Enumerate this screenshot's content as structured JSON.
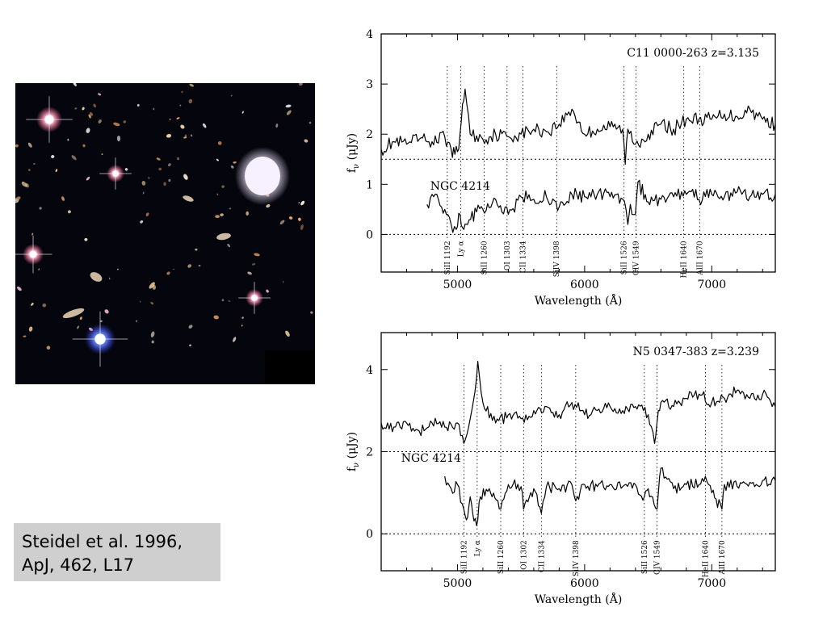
{
  "citation": {
    "line1": "Steidel et al. 1996,",
    "line2": "ApJ, 462, L17"
  },
  "image": {
    "description": ""
  },
  "chart_data": [
    {
      "type": "line",
      "title": "C11 0000-263 z=3.135",
      "xlabel": "Wavelength (Å)",
      "ylabel": "f_ν (μJy)",
      "xlim": [
        4400,
        7500
      ],
      "ylim": [
        -0.75,
        4
      ],
      "x_ticks": [
        5000,
        6000,
        7000
      ],
      "y_ticks": [
        4,
        3,
        2,
        1,
        0
      ],
      "zero_lines": [
        1.5,
        0
      ],
      "reference_label": "NGC 4214",
      "line_markers": [
        {
          "label": "SiII 1192",
          "x": 4920
        },
        {
          "label": "Ly α",
          "x": 5025
        },
        {
          "label": "SiII 1260",
          "x": 5210
        },
        {
          "label": "OI 1303",
          "x": 5390
        },
        {
          "label": "CII 1334",
          "x": 5515
        },
        {
          "label": "SiIV 1398",
          "x": 5780
        },
        {
          "label": "SiII 1526",
          "x": 6310
        },
        {
          "label": "CIV 1549",
          "x": 6405
        },
        {
          "label": "HeII 1640",
          "x": 6780
        },
        {
          "label": "AlII 1670",
          "x": 6905
        }
      ],
      "series": [
        {
          "x": [
            4400,
            4500,
            4600,
            4700,
            4800,
            4900,
            4950,
            4980,
            5010,
            5040,
            5060,
            5100,
            5200,
            5300,
            5400,
            5500,
            5600,
            5700,
            5800,
            5900,
            6000,
            6100,
            6200,
            6300,
            6320,
            6340,
            6400,
            6500,
            6600,
            6700,
            6800,
            6900,
            7000,
            7100,
            7200,
            7300,
            7400,
            7500
          ],
          "y": [
            1.7,
            1.85,
            1.8,
            1.9,
            1.85,
            1.95,
            1.7,
            1.6,
            1.7,
            2.6,
            2.9,
            2.0,
            1.9,
            2.0,
            1.95,
            2.0,
            2.1,
            2.05,
            2.2,
            2.5,
            2.0,
            2.1,
            2.15,
            2.1,
            1.4,
            2.1,
            1.8,
            2.0,
            2.2,
            2.1,
            2.3,
            2.3,
            2.3,
            2.4,
            2.35,
            2.5,
            2.3,
            2.2
          ]
        },
        {
          "x": [
            4760,
            4800,
            4850,
            4900,
            4950,
            4990,
            5020,
            5050,
            5080,
            5150,
            5200,
            5300,
            5400,
            5500,
            5600,
            5700,
            5800,
            5900,
            6000,
            6100,
            6200,
            6300,
            6340,
            6360,
            6400,
            6420,
            6500,
            6600,
            6700,
            6800,
            6850,
            6900,
            7000,
            7100,
            7200,
            7300,
            7400,
            7500
          ],
          "y": [
            0.6,
            0.8,
            0.7,
            0.5,
            0.2,
            0.1,
            0.4,
            0.1,
            0.2,
            0.45,
            0.5,
            0.7,
            0.4,
            0.75,
            0.7,
            0.75,
            0.55,
            0.8,
            0.75,
            0.8,
            0.75,
            0.7,
            0.2,
            0.6,
            0.4,
            1.05,
            0.65,
            0.7,
            0.75,
            0.8,
            0.9,
            0.7,
            0.8,
            0.75,
            0.85,
            0.75,
            0.8,
            0.8
          ]
        }
      ]
    },
    {
      "type": "line",
      "title": "N5 0347-383 z=3.239",
      "xlabel": "Wavelength (Å)",
      "ylabel": "f_ν (μJy)",
      "xlim": [
        4400,
        7500
      ],
      "ylim": [
        -0.9,
        4.9
      ],
      "x_ticks": [
        5000,
        6000,
        7000
      ],
      "y_ticks": [
        4,
        2,
        0
      ],
      "zero_lines": [
        2,
        0
      ],
      "reference_label": "NGC 4214",
      "line_markers": [
        {
          "label": "SiII 1192",
          "x": 5050
        },
        {
          "label": "Ly α",
          "x": 5155
        },
        {
          "label": "SiII 1260",
          "x": 5340
        },
        {
          "label": "OI 1302",
          "x": 5520
        },
        {
          "label": "CII 1334",
          "x": 5660
        },
        {
          "label": "SiIV 1398",
          "x": 5930
        },
        {
          "label": "SiII 1526",
          "x": 6470
        },
        {
          "label": "CIV 1549",
          "x": 6570
        },
        {
          "label": "HeII 1640",
          "x": 6950
        },
        {
          "label": "AlII 1670",
          "x": 7080
        }
      ],
      "series": [
        {
          "x": [
            4400,
            4500,
            4600,
            4700,
            4800,
            4900,
            5000,
            5050,
            5100,
            5150,
            5160,
            5200,
            5300,
            5400,
            5500,
            5600,
            5700,
            5800,
            5900,
            6000,
            6100,
            6200,
            6300,
            6400,
            6500,
            6550,
            6580,
            6600,
            6700,
            6800,
            6900,
            7000,
            7100,
            7200,
            7300,
            7400,
            7500
          ],
          "y": [
            2.7,
            2.6,
            2.7,
            2.5,
            2.7,
            2.6,
            2.7,
            2.2,
            2.8,
            3.8,
            4.2,
            3.2,
            2.7,
            2.9,
            2.8,
            3.0,
            3.1,
            2.9,
            3.2,
            2.9,
            3.0,
            3.1,
            3.0,
            3.1,
            2.9,
            2.2,
            3.0,
            3.2,
            3.1,
            3.3,
            3.4,
            3.2,
            3.3,
            3.5,
            3.3,
            3.4,
            3.1
          ]
        },
        {
          "x": [
            4900,
            4950,
            5000,
            5050,
            5080,
            5100,
            5120,
            5150,
            5180,
            5250,
            5340,
            5400,
            5500,
            5520,
            5600,
            5660,
            5700,
            5800,
            5900,
            5930,
            6000,
            6100,
            6200,
            6300,
            6400,
            6470,
            6500,
            6570,
            6600,
            6700,
            6800,
            6900,
            6950,
            7000,
            7080,
            7100,
            7200,
            7300,
            7400,
            7500
          ],
          "y": [
            1.4,
            1.1,
            1.2,
            0.6,
            0.4,
            0.9,
            0.5,
            0.2,
            0.9,
            1.1,
            0.6,
            1.2,
            1.15,
            0.6,
            1.1,
            0.5,
            1.15,
            1.1,
            1.2,
            0.8,
            1.2,
            1.15,
            1.2,
            1.15,
            1.2,
            0.9,
            1.1,
            0.6,
            1.6,
            1.1,
            1.2,
            1.2,
            1.4,
            1.0,
            0.6,
            1.2,
            1.15,
            1.25,
            1.3,
            1.3
          ]
        }
      ]
    }
  ]
}
